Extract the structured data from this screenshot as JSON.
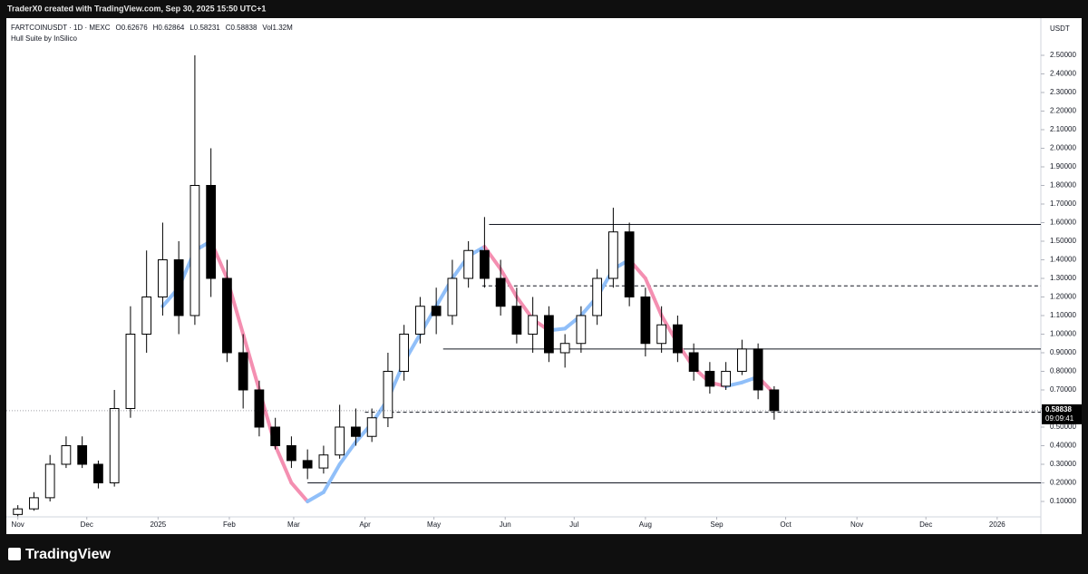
{
  "header": {
    "credit": "TraderX0 created with TradingView.com, Sep 30, 2025 15:50 UTC+1"
  },
  "footer": {
    "brand": "TradingView"
  },
  "chart_data": {
    "type": "candlestick",
    "legend": {
      "symbol": "FARTCOINUSDT · 1D · MEXC",
      "ohlcv": [
        "O0.62676",
        "H0.62864",
        "L0.58231",
        "C0.58838",
        "Vol1.32M"
      ]
    },
    "y_axis_label": "USDT",
    "x": [
      0,
      7,
      14,
      21,
      28,
      35,
      42,
      49,
      56,
      63,
      70,
      77,
      84,
      91,
      98,
      105,
      112,
      119,
      126,
      133,
      140,
      147,
      154,
      161,
      168,
      175,
      182,
      189,
      196,
      203,
      210,
      217,
      224,
      231,
      238,
      245,
      252,
      259,
      266,
      273,
      280,
      287,
      294,
      301,
      308,
      315,
      322,
      329
    ],
    "open": [
      0.03,
      0.06,
      0.12,
      0.3,
      0.4,
      0.3,
      0.2,
      0.6,
      1.0,
      1.2,
      1.4,
      1.1,
      1.8,
      1.3,
      0.9,
      0.7,
      0.5,
      0.4,
      0.32,
      0.28,
      0.35,
      0.5,
      0.45,
      0.55,
      0.8,
      1.0,
      1.15,
      1.1,
      1.3,
      1.45,
      1.3,
      1.15,
      1.0,
      1.1,
      0.9,
      0.95,
      1.1,
      1.3,
      1.55,
      1.2,
      0.95,
      1.05,
      0.9,
      0.8,
      0.72,
      0.8,
      0.92,
      0.7
    ],
    "high": [
      0.08,
      0.15,
      0.35,
      0.45,
      0.45,
      0.32,
      0.7,
      1.15,
      1.45,
      1.6,
      1.5,
      2.5,
      2.0,
      1.4,
      1.0,
      0.75,
      0.55,
      0.45,
      0.38,
      0.4,
      0.62,
      0.6,
      0.6,
      0.9,
      1.05,
      1.2,
      1.25,
      1.4,
      1.5,
      1.63,
      1.4,
      1.25,
      1.2,
      1.15,
      1.0,
      1.15,
      1.35,
      1.68,
      1.6,
      1.25,
      1.15,
      1.1,
      0.95,
      0.85,
      0.85,
      0.97,
      0.95,
      0.72
    ],
    "low": [
      0.02,
      0.05,
      0.1,
      0.28,
      0.28,
      0.17,
      0.18,
      0.55,
      0.9,
      1.1,
      1.0,
      1.05,
      1.2,
      0.85,
      0.6,
      0.45,
      0.38,
      0.28,
      0.22,
      0.25,
      0.33,
      0.4,
      0.42,
      0.5,
      0.75,
      0.95,
      1.0,
      1.05,
      1.25,
      1.25,
      1.1,
      0.95,
      0.9,
      0.85,
      0.82,
      0.9,
      1.05,
      1.25,
      1.15,
      0.88,
      0.9,
      0.85,
      0.75,
      0.68,
      0.7,
      0.78,
      0.65,
      0.54
    ],
    "close": [
      0.06,
      0.12,
      0.3,
      0.4,
      0.3,
      0.2,
      0.6,
      1.0,
      1.2,
      1.4,
      1.1,
      1.8,
      1.3,
      0.9,
      0.7,
      0.5,
      0.4,
      0.32,
      0.28,
      0.35,
      0.5,
      0.45,
      0.55,
      0.8,
      1.0,
      1.15,
      1.1,
      1.3,
      1.45,
      1.3,
      1.15,
      1.0,
      1.1,
      0.9,
      0.95,
      1.1,
      1.3,
      1.55,
      1.2,
      0.95,
      1.05,
      0.9,
      0.8,
      0.72,
      0.8,
      0.92,
      0.7,
      0.58838
    ],
    "up_color": "#ffffff",
    "down_color": "#000000",
    "wick_color": "#000000",
    "hull": {
      "name": "Hull Suite by InSilico",
      "up_color": "#90bff9",
      "down_color": "#f48fb1",
      "values": [
        null,
        null,
        null,
        null,
        null,
        null,
        null,
        null,
        null,
        1.15,
        1.25,
        1.45,
        1.5,
        1.3,
        1.0,
        0.7,
        0.4,
        0.2,
        0.1,
        0.15,
        0.3,
        0.42,
        0.52,
        0.65,
        0.85,
        1.0,
        1.15,
        1.3,
        1.42,
        1.47,
        1.35,
        1.2,
        1.08,
        1.02,
        1.03,
        1.1,
        1.2,
        1.35,
        1.4,
        1.3,
        1.1,
        0.95,
        0.82,
        0.74,
        0.72,
        0.74,
        0.77,
        0.68
      ]
    },
    "hlines": [
      {
        "value": 1.59,
        "x_start": 205,
        "style": "solid"
      },
      {
        "value": 1.26,
        "x_start": 202,
        "style": "dashed"
      },
      {
        "value": 0.92,
        "x_start": 185,
        "style": "solid"
      },
      {
        "value": 0.58,
        "x_start": 151,
        "style": "dashed"
      },
      {
        "value": 0.2,
        "x_start": 126,
        "style": "solid"
      }
    ],
    "last_price": 0.58838,
    "countdown": "09:09:41",
    "xlim": [
      -5,
      445
    ],
    "xticks": [
      {
        "value": 0,
        "label": "Nov"
      },
      {
        "value": 30,
        "label": "Dec"
      },
      {
        "value": 61,
        "label": "2025"
      },
      {
        "value": 92,
        "label": "Feb"
      },
      {
        "value": 120,
        "label": "Mar"
      },
      {
        "value": 151,
        "label": "Apr"
      },
      {
        "value": 181,
        "label": "May"
      },
      {
        "value": 212,
        "label": "Jun"
      },
      {
        "value": 242,
        "label": "Jul"
      },
      {
        "value": 273,
        "label": "Aug"
      },
      {
        "value": 304,
        "label": "Sep"
      },
      {
        "value": 334,
        "label": "Oct"
      },
      {
        "value": 365,
        "label": "Nov"
      },
      {
        "value": 395,
        "label": "Dec"
      },
      {
        "value": 426,
        "label": "2026"
      }
    ],
    "ylim": [
      0.017,
      2.7
    ],
    "yticks": [
      {
        "value": 0.1,
        "label": "0.10000"
      },
      {
        "value": 0.2,
        "label": "0.20000"
      },
      {
        "value": 0.3,
        "label": "0.30000"
      },
      {
        "value": 0.4,
        "label": "0.40000"
      },
      {
        "value": 0.5,
        "label": "0.50000"
      },
      {
        "value": 0.6,
        "label": "0.60000"
      },
      {
        "value": 0.7,
        "label": "0.70000"
      },
      {
        "value": 0.8,
        "label": "0.80000"
      },
      {
        "value": 0.9,
        "label": "0.90000"
      },
      {
        "value": 1.0,
        "label": "1.00000"
      },
      {
        "value": 1.1,
        "label": "1.10000"
      },
      {
        "value": 1.2,
        "label": "1.20000"
      },
      {
        "value": 1.3,
        "label": "1.30000"
      },
      {
        "value": 1.4,
        "label": "1.40000"
      },
      {
        "value": 1.5,
        "label": "1.50000"
      },
      {
        "value": 1.6,
        "label": "1.60000"
      },
      {
        "value": 1.7,
        "label": "1.70000"
      },
      {
        "value": 1.8,
        "label": "1.80000"
      },
      {
        "value": 1.9,
        "label": "1.90000"
      },
      {
        "value": 2.0,
        "label": "2.00000"
      },
      {
        "value": 2.1,
        "label": "2.10000"
      },
      {
        "value": 2.2,
        "label": "2.20000"
      },
      {
        "value": 2.3,
        "label": "2.30000"
      },
      {
        "value": 2.4,
        "label": "2.40000"
      },
      {
        "value": 2.5,
        "label": "2.50000"
      }
    ],
    "grid": false
  }
}
